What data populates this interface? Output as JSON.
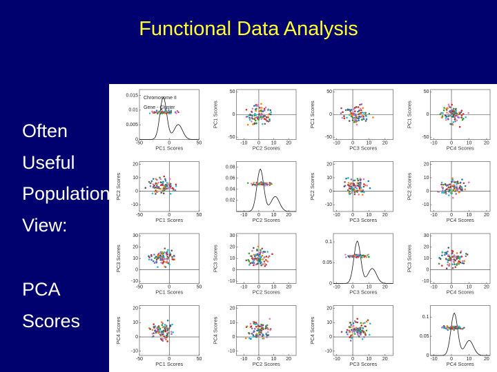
{
  "title": "Functional Data Analysis",
  "bullets": [
    "Often",
    "Useful",
    "Population",
    "View:",
    "PCA",
    "Scores"
  ],
  "figure": {
    "panels": [
      {
        "type": "density",
        "xlabel": "PC1 Scores",
        "ylabel": null,
        "xlim": [
          -50,
          50
        ],
        "ylim": [
          0,
          0.017
        ],
        "xticks": [
          -50,
          0,
          50
        ],
        "yticks": [
          0,
          0.005,
          0.01,
          0.015
        ],
        "legend": [
          "Chromosome II",
          "Gene - Cluster"
        ]
      },
      {
        "type": "scatter",
        "xlabel": "PC2 Scores",
        "ylabel": "PC1 Scores",
        "xlim": [
          -15,
          25
        ],
        "ylim": [
          -55,
          55
        ],
        "xticks": [
          -10,
          0,
          10,
          20
        ],
        "yticks": [
          -50,
          0,
          50
        ]
      },
      {
        "type": "scatter",
        "xlabel": "PC3 Scores",
        "ylabel": "PC1 Scores",
        "xlim": [
          -12,
          25
        ],
        "ylim": [
          -55,
          55
        ],
        "xticks": [
          -10,
          0,
          10,
          20
        ],
        "yticks": [
          -50,
          0,
          50
        ]
      },
      {
        "type": "scatter",
        "xlabel": "PC4 Scores",
        "ylabel": "PC1 Scores",
        "xlim": [
          -12,
          22
        ],
        "ylim": [
          -55,
          55
        ],
        "xticks": [
          -10,
          0,
          10,
          20
        ],
        "yticks": [
          -50,
          0,
          50
        ]
      },
      {
        "type": "scatter",
        "xlabel": "PC1 Scores",
        "ylabel": "PC2 Scores",
        "xlim": [
          -50,
          50
        ],
        "ylim": [
          -15,
          22
        ],
        "xticks": [
          -50,
          0,
          50
        ],
        "yticks": [
          -10,
          0,
          10,
          20
        ]
      },
      {
        "type": "density",
        "xlabel": "PC2 Scores",
        "ylabel": null,
        "xlim": [
          -15,
          25
        ],
        "ylim": [
          0,
          0.09
        ],
        "xticks": [
          -10,
          0,
          10,
          20
        ],
        "yticks": [
          0.02,
          0.04,
          0.06,
          0.08
        ]
      },
      {
        "type": "scatter",
        "xlabel": "PC3 Scores",
        "ylabel": "PC2 Scores",
        "xlim": [
          -12,
          25
        ],
        "ylim": [
          -15,
          22
        ],
        "xticks": [
          -10,
          0,
          10,
          20
        ],
        "yticks": [
          -10,
          0,
          10,
          20
        ]
      },
      {
        "type": "scatter",
        "xlabel": "PC4 Scores",
        "ylabel": "PC2 Scores",
        "xlim": [
          -12,
          22
        ],
        "ylim": [
          -15,
          22
        ],
        "xticks": [
          -10,
          0,
          10,
          20
        ],
        "yticks": [
          -10,
          0,
          10,
          20
        ]
      },
      {
        "type": "scatter",
        "xlabel": "PC1 Scores",
        "ylabel": "PC3 Scores",
        "xlim": [
          -50,
          50
        ],
        "ylim": [
          -12,
          32
        ],
        "xticks": [
          -50,
          0,
          50
        ],
        "yticks": [
          -10,
          0,
          10,
          20,
          30
        ]
      },
      {
        "type": "scatter",
        "xlabel": "PC2 Scores",
        "ylabel": "PC3 Scores",
        "xlim": [
          -15,
          25
        ],
        "ylim": [
          -12,
          32
        ],
        "xticks": [
          -10,
          0,
          10,
          20
        ],
        "yticks": [
          -10,
          0,
          10,
          20,
          30
        ]
      },
      {
        "type": "density",
        "xlabel": "PC3 Scores",
        "ylabel": null,
        "xlim": [
          -12,
          25
        ],
        "ylim": [
          0,
          0.12
        ],
        "xticks": [
          -10,
          0,
          10,
          20
        ],
        "yticks": [
          0,
          0.05,
          0.1
        ]
      },
      {
        "type": "scatter",
        "xlabel": "PC4 Scores",
        "ylabel": "PC3 Scores",
        "xlim": [
          -12,
          22
        ],
        "ylim": [
          -12,
          32
        ],
        "xticks": [
          -10,
          0,
          10,
          20
        ],
        "yticks": [
          -10,
          0,
          10,
          20,
          30
        ]
      },
      {
        "type": "scatter",
        "xlabel": "PC1 Scores",
        "ylabel": "PC4 Scores",
        "xlim": [
          -50,
          50
        ],
        "ylim": [
          -13,
          22
        ],
        "xticks": [
          -50,
          0,
          50
        ],
        "yticks": [
          -10,
          0,
          10,
          20
        ]
      },
      {
        "type": "scatter",
        "xlabel": "PC2 Scores",
        "ylabel": "PC4 Scores",
        "xlim": [
          -15,
          25
        ],
        "ylim": [
          -13,
          22
        ],
        "xticks": [
          -10,
          0,
          10,
          20
        ],
        "yticks": [
          -10,
          0,
          10,
          20
        ]
      },
      {
        "type": "scatter",
        "xlabel": "PC3 Scores",
        "ylabel": "PC4 Scores",
        "xlim": [
          -12,
          25
        ],
        "ylim": [
          -13,
          22
        ],
        "xticks": [
          -10,
          0,
          10,
          20
        ],
        "yticks": [
          -10,
          0,
          10,
          20
        ]
      },
      {
        "type": "density",
        "xlabel": "PC4 Scores",
        "ylabel": null,
        "xlim": [
          -12,
          22
        ],
        "ylim": [
          0,
          0.13
        ],
        "xticks": [
          -10,
          0,
          10,
          20
        ],
        "yticks": [
          0,
          0.05,
          0.1
        ]
      }
    ]
  }
}
